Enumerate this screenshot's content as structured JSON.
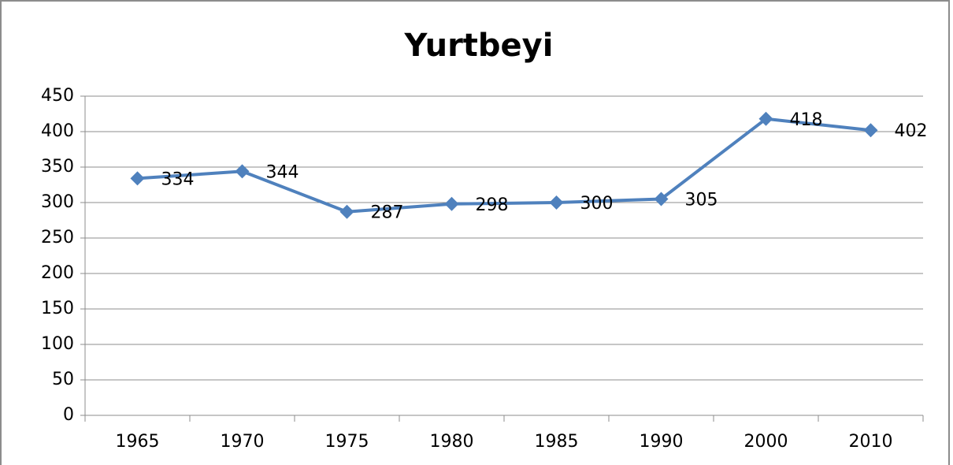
{
  "chart_data": {
    "type": "line",
    "title": "Yurtbeyi",
    "categories": [
      "1965",
      "1970",
      "1975",
      "1980",
      "1985",
      "1990",
      "2000",
      "2010"
    ],
    "series": [
      {
        "name": "Yurtbeyi",
        "color": "#4f81bd",
        "values": [
          334,
          344,
          287,
          298,
          300,
          305,
          418,
          402
        ]
      }
    ],
    "ylim": [
      0,
      450
    ],
    "yticks": [
      0,
      50,
      100,
      150,
      200,
      250,
      300,
      350,
      400,
      450
    ],
    "grid": true
  }
}
